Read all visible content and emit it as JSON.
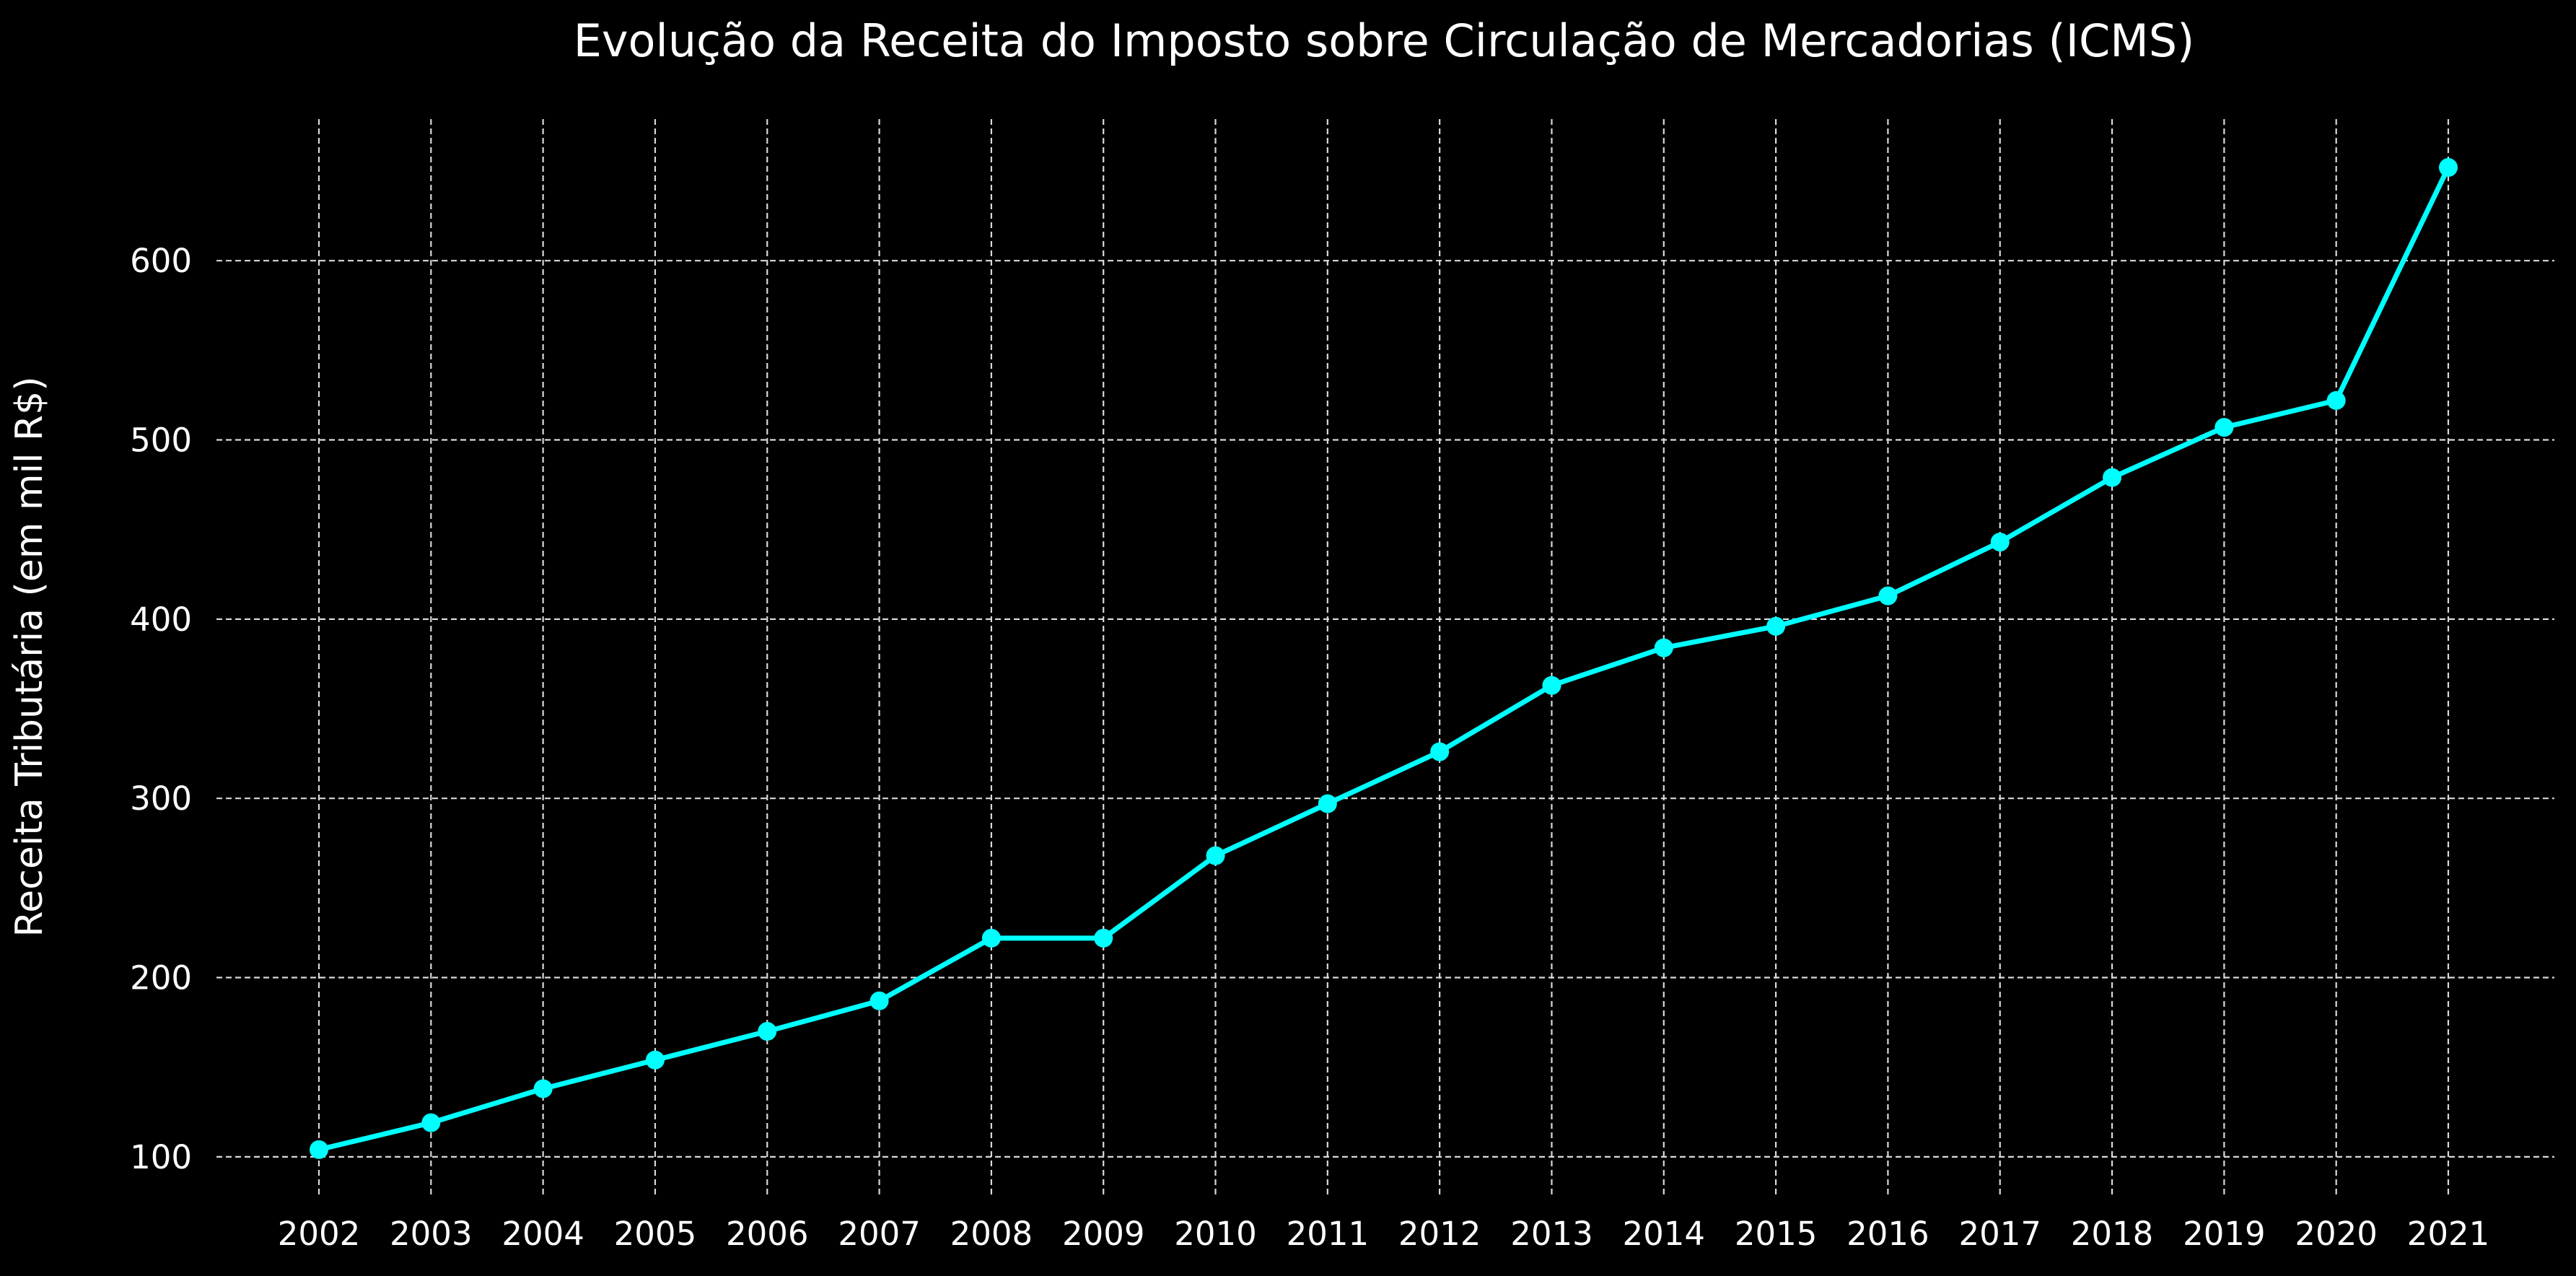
{
  "chart_data": {
    "type": "line",
    "title": "Evolução da Receita do Imposto sobre Circulação de Mercadorias (ICMS)",
    "xlabel": "",
    "ylabel": "Receita Tributária (em mil R$)",
    "x": [
      "2002",
      "2003",
      "2004",
      "2005",
      "2006",
      "2007",
      "2008",
      "2009",
      "2010",
      "2011",
      "2012",
      "2013",
      "2014",
      "2015",
      "2016",
      "2017",
      "2018",
      "2019",
      "2020",
      "2021"
    ],
    "series": [
      {
        "values": [
          104,
          119,
          138,
          154,
          170,
          187,
          222,
          222,
          268,
          297,
          326,
          363,
          384,
          396,
          413,
          443,
          479,
          507,
          522,
          652
        ]
      }
    ],
    "yticks": [
      100,
      200,
      300,
      400,
      500,
      600
    ],
    "ylim": [
      79,
      679
    ],
    "grid": true,
    "legend": "none",
    "colors": {
      "background": "#000000",
      "line": "#00ffff",
      "grid": "#d9d9d9",
      "text": "#ffffff"
    }
  }
}
